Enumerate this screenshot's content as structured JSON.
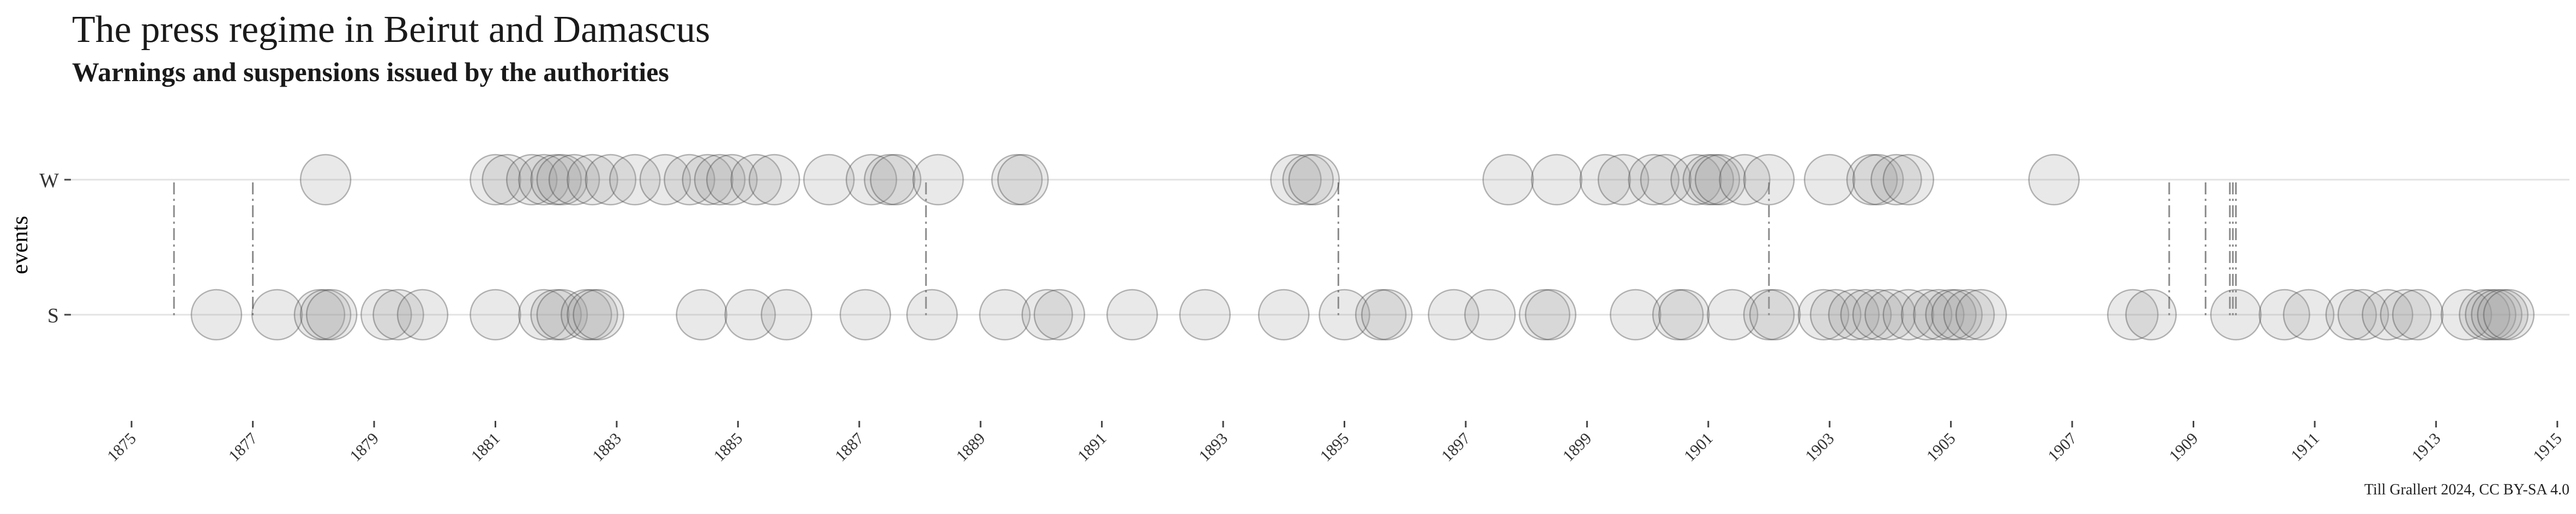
{
  "chart_data": {
    "type": "scatter",
    "title": "The press regime in Beirut and Damascus",
    "subtitle": "Warnings and suspensions issued by the authorities",
    "ylabel": "events",
    "xlabel": "",
    "credit": "Till Grallert 2024, CC BY-SA 4.0",
    "categories": [
      "W",
      "S"
    ],
    "xlim": [
      1874.0,
      1915.2
    ],
    "xticks": [
      "1875",
      "1877",
      "1879",
      "1881",
      "1883",
      "1885",
      "1887",
      "1889",
      "1891",
      "1893",
      "1895",
      "1897",
      "1899",
      "1901",
      "1903",
      "1905",
      "1907",
      "1909",
      "1911",
      "1913",
      "1915"
    ],
    "grid": true,
    "legend": "none",
    "point_color": "#9a9a9a",
    "point_stroke": "#333333",
    "series": [
      {
        "category": "W",
        "x": [
          1878.2,
          1881.0,
          1881.2,
          1881.6,
          1881.8,
          1882.0,
          1882.1,
          1882.3,
          1882.6,
          1882.9,
          1883.3,
          1883.8,
          1884.2,
          1884.5,
          1884.7,
          1884.9,
          1885.3,
          1885.6,
          1886.5,
          1887.2,
          1887.5,
          1887.6,
          1888.3,
          1889.6,
          1889.7,
          1894.2,
          1894.4,
          1894.5,
          1897.7,
          1898.5,
          1899.3,
          1899.6,
          1900.1,
          1900.3,
          1900.8,
          1901.0,
          1901.1,
          1901.2,
          1901.6,
          1902.0,
          1903.0,
          1903.7,
          1903.8,
          1904.1,
          1904.3,
          1906.7
        ]
      },
      {
        "category": "S",
        "x": [
          1876.4,
          1877.4,
          1878.1,
          1878.2,
          1878.3,
          1879.2,
          1879.4,
          1879.8,
          1881.0,
          1881.8,
          1882.0,
          1882.1,
          1882.5,
          1882.6,
          1882.7,
          1884.4,
          1885.2,
          1885.8,
          1887.1,
          1888.2,
          1889.4,
          1890.1,
          1890.3,
          1891.5,
          1892.7,
          1894.0,
          1895.0,
          1895.6,
          1895.7,
          1896.8,
          1897.4,
          1898.3,
          1898.4,
          1899.8,
          1900.5,
          1900.6,
          1901.4,
          1902.0,
          1902.1,
          1902.9,
          1903.1,
          1903.4,
          1903.6,
          1903.8,
          1904.0,
          1904.3,
          1904.6,
          1904.8,
          1905.0,
          1905.1,
          1905.3,
          1905.5,
          1908.0,
          1908.3,
          1909.7,
          1910.5,
          1910.9,
          1911.6,
          1911.8,
          1912.2,
          1912.5,
          1912.7,
          1913.5,
          1913.8,
          1913.9,
          1914.0,
          1914.1,
          1914.2
        ]
      }
    ],
    "markers": [
      1875.7,
      1877.0,
      1888.1,
      1894.9,
      1902.0,
      1908.6,
      1909.2,
      1909.6,
      1909.65,
      1909.7
    ]
  }
}
